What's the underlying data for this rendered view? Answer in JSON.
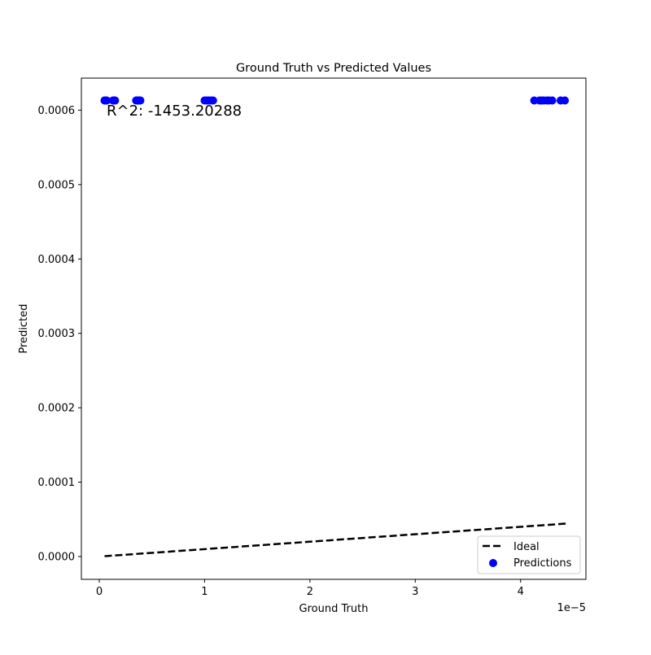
{
  "chart_data": {
    "type": "scatter",
    "title": "Ground Truth vs Predicted Values",
    "xlabel": "Ground Truth",
    "ylabel": "Predicted",
    "x_offset_label": "1e−5",
    "xlim": [
      -1.7e-06,
      4.62e-05
    ],
    "ylim": [
      -3.06e-05,
      0.0006431
    ],
    "x_ticks": [
      {
        "value": 0,
        "label": "0"
      },
      {
        "value": 1e-05,
        "label": "1"
      },
      {
        "value": 2e-05,
        "label": "2"
      },
      {
        "value": 3e-05,
        "label": "3"
      },
      {
        "value": 4e-05,
        "label": "4"
      }
    ],
    "y_ticks": [
      {
        "value": 0,
        "label": "0.0000"
      },
      {
        "value": 0.0001,
        "label": "0.0001"
      },
      {
        "value": 0.0002,
        "label": "0.0002"
      },
      {
        "value": 0.0003,
        "label": "0.0003"
      },
      {
        "value": 0.0004,
        "label": "0.0004"
      },
      {
        "value": 0.0005,
        "label": "0.0005"
      },
      {
        "value": 0.0006,
        "label": "0.0006"
      }
    ],
    "annotation": "R^2: -1453.20288",
    "grid": false,
    "legend_position": "lower-right",
    "series": [
      {
        "name": "Ideal",
        "kind": "line",
        "style": "dashed",
        "color": "#000000",
        "x": [
          5e-07,
          4.43e-05
        ],
        "y": [
          5e-07,
          4.43e-05
        ]
      },
      {
        "name": "Predictions",
        "kind": "scatter",
        "color": "#0000ff",
        "x": [
          5e-07,
          6e-07,
          7e-07,
          1.3e-06,
          1.4e-06,
          1.5e-06,
          3.5e-06,
          3.6e-06,
          3.7e-06,
          3.8e-06,
          3.9e-06,
          1e-05,
          1.02e-05,
          1.04e-05,
          1.06e-05,
          1.08e-05,
          4.13e-05,
          4.18e-05,
          4.2e-05,
          4.22e-05,
          4.25e-05,
          4.27e-05,
          4.3e-05,
          4.38e-05,
          4.42e-05
        ],
        "y": [
          0.000613,
          0.000613,
          0.000613,
          0.000613,
          0.000613,
          0.000613,
          0.000613,
          0.000613,
          0.000613,
          0.000613,
          0.000613,
          0.000613,
          0.000613,
          0.000613,
          0.000613,
          0.000613,
          0.000613,
          0.000613,
          0.000613,
          0.000613,
          0.000613,
          0.000613,
          0.000613,
          0.000613,
          0.000613
        ]
      }
    ]
  }
}
